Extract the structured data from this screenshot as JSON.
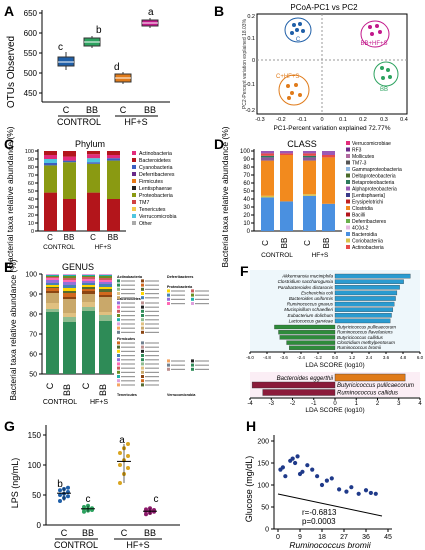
{
  "panels": {
    "A": {
      "letter": "A",
      "ylabel": "OTUs Observed",
      "groups": [
        "CONTROL",
        "HF+S"
      ],
      "xticks": [
        "C",
        "BB",
        "C",
        "BB"
      ],
      "letters": [
        "c",
        "b",
        "d",
        "a"
      ],
      "yticks": [
        "450",
        "500",
        "550",
        "600",
        "650"
      ]
    },
    "B": {
      "letter": "B",
      "title": "PCoA-PC1 vs PC2",
      "xlabel": "PC1-Percent variation explained 72.77%",
      "ylabel": "PC2-Percent variation explained 18.03%",
      "xticks": [
        "-0.3",
        "-0.2",
        "-0.1",
        "0",
        "0.1",
        "0.2",
        "0.3",
        "0.4"
      ],
      "yticks": [
        "-0.2",
        "-0.1",
        "0",
        "0.1",
        "0.2"
      ],
      "labels": {
        "c": "C",
        "bbhfs": "BB+HF+S",
        "chfs": "C+HF+S",
        "bb": "BB"
      }
    },
    "C": {
      "letter": "C",
      "title": "Phylum",
      "ylabel": "Bacterial taxa relative abundance (%)",
      "groups": [
        "CONTROL",
        "HF+S"
      ],
      "xticks": [
        "C",
        "BB",
        "C",
        "BB"
      ],
      "yticks": [
        "0",
        "10",
        "20",
        "30",
        "40",
        "50",
        "60",
        "70",
        "80",
        "90",
        "100"
      ],
      "legend": [
        "Actinobacteria",
        "Bacteroidetes",
        "Cyanobacteria",
        "Deferribacteres",
        "Firmicutes",
        "Lentisphaerae",
        "Proteobacteria",
        "TM7",
        "Tenericutes",
        "Verrucomicrobia",
        "Other"
      ]
    },
    "D": {
      "letter": "D",
      "title": "CLASS",
      "ylabel": "Bacterial taxa relative abundance (%)",
      "groups": [
        "CONTROL",
        "HF+S"
      ],
      "xticks": [
        "C",
        "BB",
        "C",
        "BB"
      ],
      "yticks": [
        "0",
        "10",
        "20",
        "30",
        "40",
        "50",
        "60",
        "70",
        "80",
        "90",
        "100"
      ],
      "legend": [
        "Verrucomicrobiae",
        "RF3",
        "Mollicutes",
        "TM7-3",
        "Gammaproteobacteria",
        "Deltaproteobacteria",
        "Betaproteobacteria",
        "Alphaproteobacteria",
        "[Lentisphaeria]",
        "Erysipelotrichi",
        "Clostridia",
        "Bacilli",
        "Deferribacteres",
        "4C0d-2",
        "Bacteroidia",
        "Coriobacteriia",
        "Actinobacteria"
      ]
    },
    "E": {
      "letter": "E",
      "title": "GENUS",
      "ylabel": "Bacterial taxa relative abundance (%)",
      "groups": [
        "CONTROL",
        "HF+S"
      ],
      "xticks": [
        "C",
        "BB",
        "C",
        "BB"
      ],
      "yticks": [
        "50",
        "60",
        "70",
        "80",
        "90",
        "100"
      ],
      "legend_heads": [
        "Actinobacteria",
        "Bacteroidetes",
        "Firmicutes",
        "Deferribacteres",
        "Proteobacteria",
        "Tenericutes",
        "Verrucomicrobia"
      ]
    },
    "F": {
      "letter": "F",
      "xlabel": "LDA SCORE (log10)",
      "xticks_top": [
        "-6.0",
        "-4.8",
        "-3.6",
        "-2.4",
        "-1.2",
        "0.0",
        "1.2",
        "2.4",
        "3.6",
        "4.8",
        "6.0"
      ],
      "xticks_bot": [
        "-4",
        "-3",
        "-2",
        "-1",
        "0",
        "1",
        "2",
        "3",
        "4"
      ],
      "top_taxa": [
        "Akkermansia muciniphila",
        "Clostridium saccharogumia",
        "Parabacteroides distasonis",
        "Escherichia coli",
        "Bacteroides uniformis",
        "Ruminococcus gnavus",
        "Mucispirillum schaedleri",
        "Eubacterium dolichum",
        "Lactococcus garvieae"
      ],
      "top_taxa_right": [
        "Butyricicoccus pullicaecorum",
        "Ruminococcus flavefaciens",
        "Butyricicoccus callidus",
        "Clostridium methylpentosum",
        "Ruminococcus bromii"
      ],
      "bot_taxa": [
        "Bacteroides eggerthii",
        "Butyricicoccus pullicaecorum",
        "Ruminococcus callidus"
      ]
    },
    "G": {
      "letter": "G",
      "ylabel": "LPS (ng/mL)",
      "groups": [
        "CONTROL",
        "HF+S"
      ],
      "xticks": [
        "C",
        "BB",
        "C",
        "BB"
      ],
      "letters": [
        "b",
        "c",
        "a",
        "c"
      ],
      "yticks": [
        "0",
        "50",
        "100",
        "150"
      ]
    },
    "H": {
      "letter": "H",
      "ylabel": "Glucose (mg/dL)",
      "xlabel": "Ruminococcus bromii",
      "xticks": [
        "0",
        "9",
        "18",
        "27",
        "36",
        "45"
      ],
      "yticks": [
        "0",
        "50",
        "100",
        "150",
        "200"
      ],
      "r": "r=-0.6813",
      "p": "p=0.0003"
    }
  },
  "colors": {
    "C": "#1f5fa8",
    "BB": "#2ca25f",
    "HFS": "#e07b1a",
    "BBHFS": "#c2188b"
  }
}
